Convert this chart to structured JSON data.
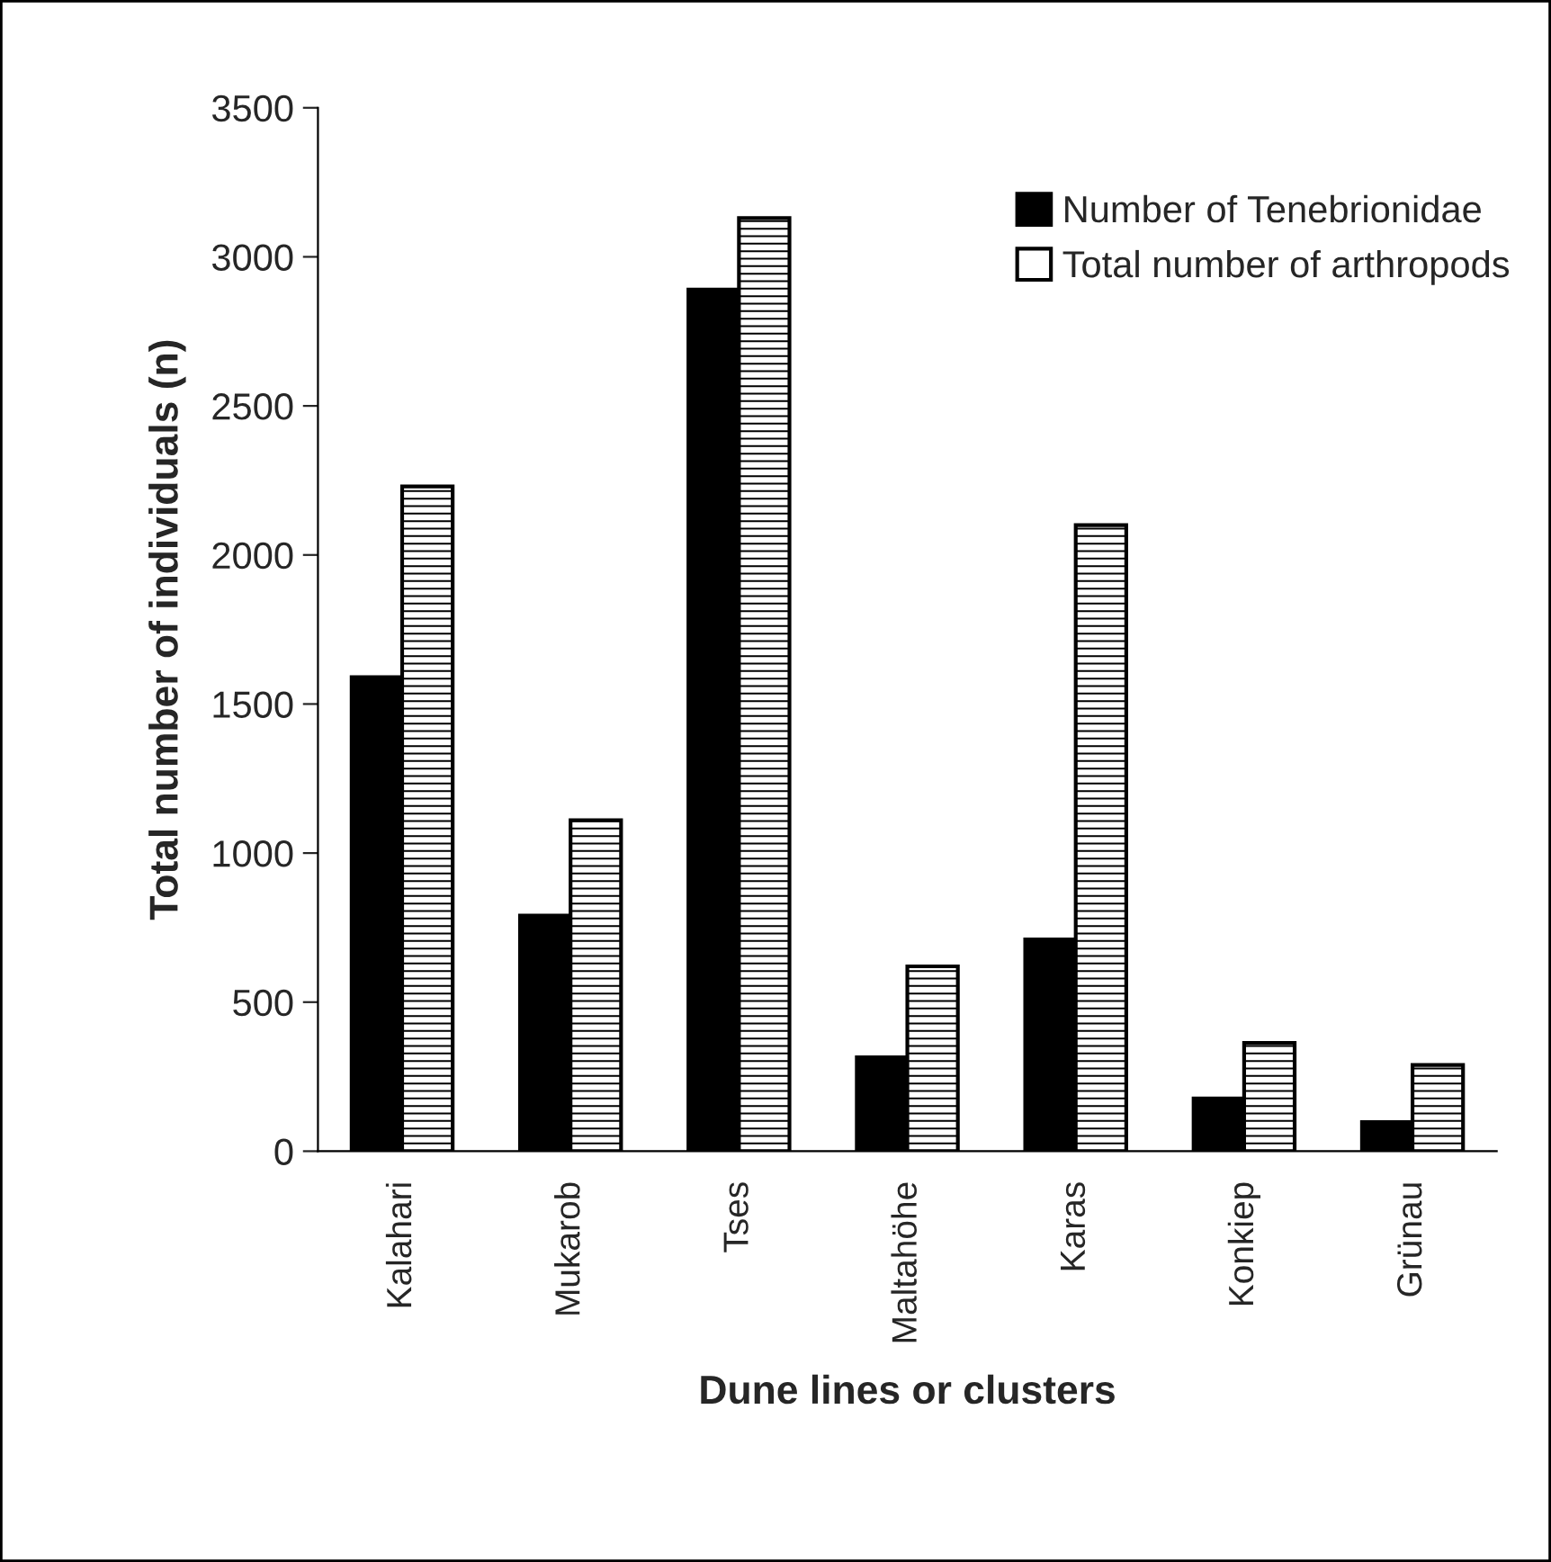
{
  "chart_data": {
    "type": "bar",
    "xlabel": "Dune lines or clusters",
    "ylabel": "Total number of individuals (n)",
    "categories": [
      "Kalahari",
      "Mukarob",
      "Tses",
      "Maltahöhe",
      "Karas",
      "Konkiep",
      "Grünau"
    ],
    "series": [
      {
        "name": "Number of Tenebrionidae",
        "color": "#000000",
        "values": [
          1590,
          790,
          2890,
          315,
          710,
          177,
          98
        ]
      },
      {
        "name": "Total number of arthropods",
        "color": "#ffffff",
        "values": [
          2230,
          1110,
          3130,
          620,
          2100,
          363,
          289
        ]
      }
    ],
    "ylim": [
      0,
      3500
    ],
    "yticks": [
      0,
      500,
      1000,
      1500,
      2000,
      2500,
      3000,
      3500
    ],
    "grid": false,
    "legend": "top right"
  }
}
